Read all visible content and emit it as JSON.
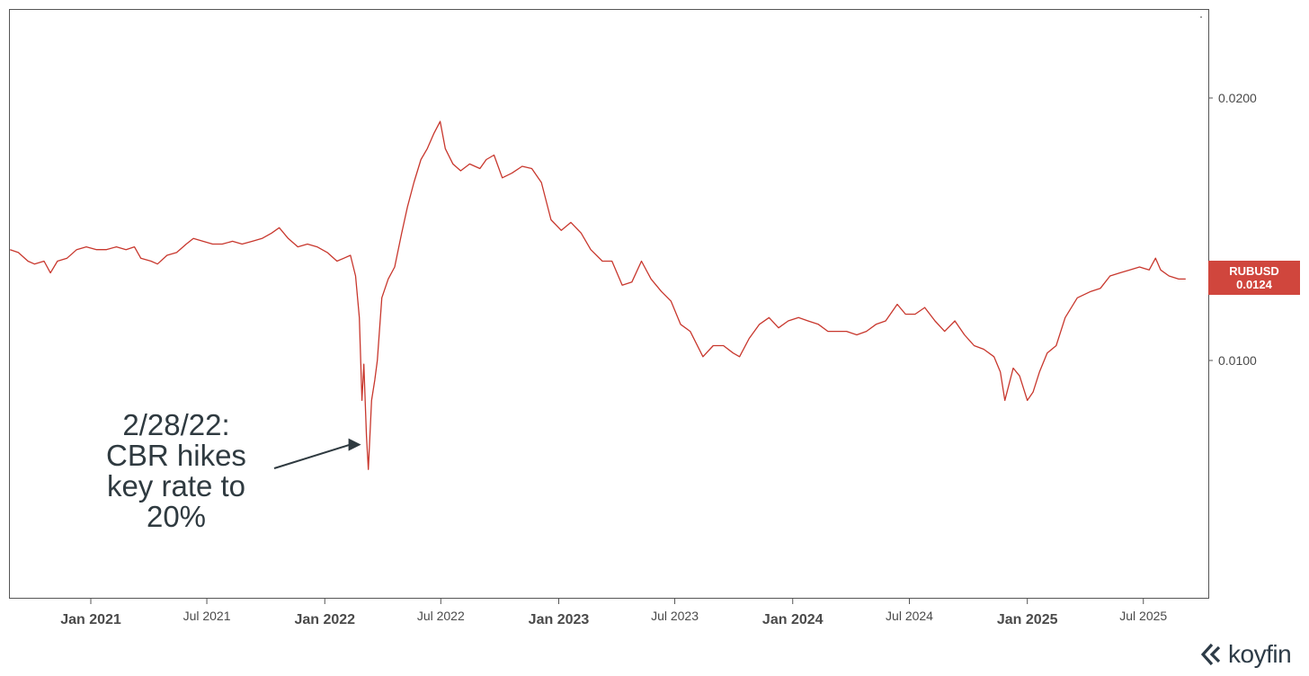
{
  "chart_data": {
    "type": "line",
    "ticker": "RUBUSD",
    "last_value_label": "0.0124",
    "line_color": "#c8372d",
    "badge_color": "#d0463d",
    "y_ticks": [
      {
        "value": 0.02,
        "label": "0.0200"
      },
      {
        "value": 0.01,
        "label": "0.0100"
      }
    ],
    "y_log_scale": true,
    "x_ticks": [
      {
        "date": "2021-01-01",
        "label": "Jan 2021",
        "major": true
      },
      {
        "date": "2021-07-01",
        "label": "Jul 2021",
        "major": false
      },
      {
        "date": "2022-01-01",
        "label": "Jan 2022",
        "major": true
      },
      {
        "date": "2022-07-01",
        "label": "Jul 2022",
        "major": false
      },
      {
        "date": "2023-01-01",
        "label": "Jan 2023",
        "major": true
      },
      {
        "date": "2023-07-01",
        "label": "Jul 2023",
        "major": false
      },
      {
        "date": "2024-01-01",
        "label": "Jan 2024",
        "major": true
      },
      {
        "date": "2024-07-01",
        "label": "Jul 2024",
        "major": false
      },
      {
        "date": "2025-01-01",
        "label": "Jan 2025",
        "major": true
      },
      {
        "date": "2025-07-01",
        "label": "Jul 2025",
        "major": false
      }
    ],
    "series": [
      {
        "points": [
          [
            "2020-08-28",
            0.0134
          ],
          [
            "2020-09-10",
            0.0133
          ],
          [
            "2020-09-25",
            0.013
          ],
          [
            "2020-10-05",
            0.0129
          ],
          [
            "2020-10-20",
            0.013
          ],
          [
            "2020-10-30",
            0.0126
          ],
          [
            "2020-11-10",
            0.013
          ],
          [
            "2020-11-25",
            0.0131
          ],
          [
            "2020-12-10",
            0.0134
          ],
          [
            "2020-12-25",
            0.0135
          ],
          [
            "2021-01-10",
            0.0134
          ],
          [
            "2021-01-25",
            0.0134
          ],
          [
            "2021-02-10",
            0.0135
          ],
          [
            "2021-02-25",
            0.0134
          ],
          [
            "2021-03-10",
            0.0135
          ],
          [
            "2021-03-20",
            0.0131
          ],
          [
            "2021-04-05",
            0.013
          ],
          [
            "2021-04-15",
            0.0129
          ],
          [
            "2021-04-30",
            0.0132
          ],
          [
            "2021-05-15",
            0.0133
          ],
          [
            "2021-05-30",
            0.0136
          ],
          [
            "2021-06-10",
            0.0138
          ],
          [
            "2021-06-25",
            0.0137
          ],
          [
            "2021-07-10",
            0.0136
          ],
          [
            "2021-07-25",
            0.0136
          ],
          [
            "2021-08-10",
            0.0137
          ],
          [
            "2021-08-25",
            0.0136
          ],
          [
            "2021-09-10",
            0.0137
          ],
          [
            "2021-09-25",
            0.0138
          ],
          [
            "2021-10-10",
            0.014
          ],
          [
            "2021-10-22",
            0.0142
          ],
          [
            "2021-11-05",
            0.0138
          ],
          [
            "2021-11-20",
            0.0135
          ],
          [
            "2021-12-05",
            0.0136
          ],
          [
            "2021-12-20",
            0.0135
          ],
          [
            "2022-01-05",
            0.0133
          ],
          [
            "2022-01-20",
            0.013
          ],
          [
            "2022-01-31",
            0.0131
          ],
          [
            "2022-02-10",
            0.0132
          ],
          [
            "2022-02-18",
            0.0125
          ],
          [
            "2022-02-24",
            0.0112
          ],
          [
            "2022-02-28",
            0.009
          ],
          [
            "2022-03-03",
            0.0099
          ],
          [
            "2022-03-07",
            0.0082
          ],
          [
            "2022-03-10",
            0.0075
          ],
          [
            "2022-03-15",
            0.009
          ],
          [
            "2022-03-20",
            0.0095
          ],
          [
            "2022-03-24",
            0.01
          ],
          [
            "2022-03-31",
            0.0118
          ],
          [
            "2022-04-10",
            0.0124
          ],
          [
            "2022-04-20",
            0.0128
          ],
          [
            "2022-05-01",
            0.014
          ],
          [
            "2022-05-10",
            0.015
          ],
          [
            "2022-05-20",
            0.016
          ],
          [
            "2022-05-31",
            0.017
          ],
          [
            "2022-06-10",
            0.0175
          ],
          [
            "2022-06-20",
            0.0182
          ],
          [
            "2022-06-30",
            0.0188
          ],
          [
            "2022-07-08",
            0.0175
          ],
          [
            "2022-07-20",
            0.0168
          ],
          [
            "2022-08-01",
            0.0165
          ],
          [
            "2022-08-15",
            0.0168
          ],
          [
            "2022-08-31",
            0.0166
          ],
          [
            "2022-09-10",
            0.017
          ],
          [
            "2022-09-22",
            0.0172
          ],
          [
            "2022-10-05",
            0.0162
          ],
          [
            "2022-10-20",
            0.0164
          ],
          [
            "2022-11-05",
            0.0167
          ],
          [
            "2022-11-20",
            0.0166
          ],
          [
            "2022-12-05",
            0.016
          ],
          [
            "2022-12-20",
            0.0145
          ],
          [
            "2023-01-05",
            0.0141
          ],
          [
            "2023-01-20",
            0.0144
          ],
          [
            "2023-02-05",
            0.014
          ],
          [
            "2023-02-20",
            0.0134
          ],
          [
            "2023-03-10",
            0.013
          ],
          [
            "2023-03-25",
            0.013
          ],
          [
            "2023-04-10",
            0.0122
          ],
          [
            "2023-04-25",
            0.0123
          ],
          [
            "2023-05-10",
            0.013
          ],
          [
            "2023-05-25",
            0.0124
          ],
          [
            "2023-06-10",
            0.012
          ],
          [
            "2023-06-25",
            0.0117
          ],
          [
            "2023-07-10",
            0.011
          ],
          [
            "2023-07-25",
            0.0108
          ],
          [
            "2023-08-14",
            0.0101
          ],
          [
            "2023-08-30",
            0.0104
          ],
          [
            "2023-09-15",
            0.0104
          ],
          [
            "2023-09-30",
            0.0102
          ],
          [
            "2023-10-10",
            0.0101
          ],
          [
            "2023-10-25",
            0.0106
          ],
          [
            "2023-11-10",
            0.011
          ],
          [
            "2023-11-25",
            0.0112
          ],
          [
            "2023-12-10",
            0.0109
          ],
          [
            "2023-12-25",
            0.0111
          ],
          [
            "2024-01-10",
            0.0112
          ],
          [
            "2024-01-25",
            0.0111
          ],
          [
            "2024-02-10",
            0.011
          ],
          [
            "2024-02-25",
            0.0108
          ],
          [
            "2024-03-10",
            0.0108
          ],
          [
            "2024-03-25",
            0.0108
          ],
          [
            "2024-04-10",
            0.0107
          ],
          [
            "2024-04-25",
            0.0108
          ],
          [
            "2024-05-10",
            0.011
          ],
          [
            "2024-05-25",
            0.0111
          ],
          [
            "2024-06-12",
            0.0116
          ],
          [
            "2024-06-25",
            0.0113
          ],
          [
            "2024-07-10",
            0.0113
          ],
          [
            "2024-07-25",
            0.0115
          ],
          [
            "2024-08-10",
            0.0111
          ],
          [
            "2024-08-25",
            0.0108
          ],
          [
            "2024-09-10",
            0.0111
          ],
          [
            "2024-09-25",
            0.0107
          ],
          [
            "2024-10-10",
            0.0104
          ],
          [
            "2024-10-25",
            0.0103
          ],
          [
            "2024-11-10",
            0.0101
          ],
          [
            "2024-11-20",
            0.0097
          ],
          [
            "2024-11-27",
            0.009
          ],
          [
            "2024-12-10",
            0.0098
          ],
          [
            "2024-12-20",
            0.0096
          ],
          [
            "2025-01-01",
            0.009
          ],
          [
            "2025-01-10",
            0.0092
          ],
          [
            "2025-01-20",
            0.0097
          ],
          [
            "2025-02-01",
            0.0102
          ],
          [
            "2025-02-15",
            0.0104
          ],
          [
            "2025-03-01",
            0.0112
          ],
          [
            "2025-03-20",
            0.0118
          ],
          [
            "2025-04-10",
            0.012
          ],
          [
            "2025-04-25",
            0.0121
          ],
          [
            "2025-05-10",
            0.0125
          ],
          [
            "2025-05-25",
            0.0126
          ],
          [
            "2025-06-10",
            0.0127
          ],
          [
            "2025-06-25",
            0.0128
          ],
          [
            "2025-07-10",
            0.0127
          ],
          [
            "2025-07-20",
            0.0131
          ],
          [
            "2025-07-28",
            0.0127
          ],
          [
            "2025-08-10",
            0.0125
          ],
          [
            "2025-08-25",
            0.0124
          ],
          [
            "2025-09-05",
            0.0124
          ]
        ]
      }
    ],
    "annotation": {
      "lines": [
        "2/28/22:",
        "CBR hikes",
        "key rate to",
        "20%"
      ],
      "target_date": "2022-03-07",
      "target_value": 0.0082
    }
  },
  "brand": {
    "name": "koyfin"
  }
}
